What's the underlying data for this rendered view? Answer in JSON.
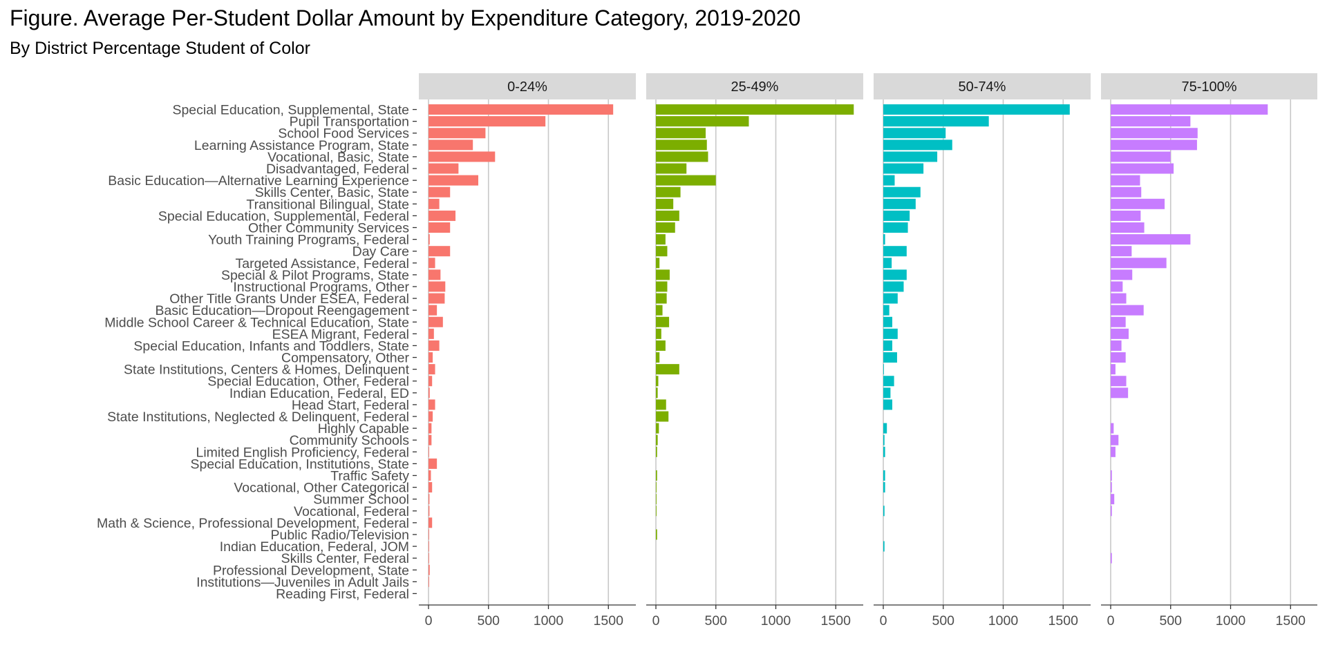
{
  "title": "Figure. Average Per-Student Dollar Amount by Expenditure Category, 2019-2020",
  "subtitle": "By District Percentage Student of Color",
  "chart_data": {
    "type": "bar",
    "orientation": "horizontal",
    "title": "Figure. Average Per-Student Dollar Amount by Expenditure Category, 2019-2020",
    "subtitle": "By District Percentage Student of Color",
    "xlim": [
      0,
      1750
    ],
    "x_ticks": [
      "0",
      "500",
      "1000",
      "1500"
    ],
    "x_tick_values": [
      0,
      500,
      1000,
      1500
    ],
    "grid": true,
    "legend": "none",
    "categories": [
      "Special Education, Supplemental, State",
      "Pupil Transportation",
      "School Food Services",
      "Learning Assistance Program, State",
      "Vocational, Basic, State",
      "Disadvantaged, Federal",
      "Basic Education—Alternative Learning Experience",
      "Skills Center, Basic, State",
      "Transitional Bilingual, State",
      "Special Education, Supplemental, Federal",
      "Other Community Services",
      "Youth Training Programs, Federal",
      "Day Care",
      "Targeted Assistance, Federal",
      "Special & Pilot Programs, State",
      "Instructional Programs, Other",
      "Other Title Grants Under ESEA, Federal",
      "Basic Education—Dropout Reengagement",
      "Middle School Career & Technical Education, State",
      "ESEA Migrant, Federal",
      "Special Education, Infants and Toddlers, State",
      "Compensatory, Other",
      "State Institutions, Centers & Homes, Delinquent",
      "Special Education, Other, Federal",
      "Indian Education, Federal, ED",
      "Head Start, Federal",
      "State Institutions, Neglected & Delinquent, Federal",
      "Highly Capable",
      "Community Schools",
      "Limited English Proficiency, Federal",
      "Special Education, Institutions, State",
      "Traffic Safety",
      "Vocational, Other Categorical",
      "Summer School",
      "Vocational, Federal",
      "Math & Science, Professional Development, Federal",
      "Public Radio/Television",
      "Indian Education, Federal, JOM",
      "Skills Center, Federal",
      "Professional Development, State",
      "Institutions—Juveniles in Adult Jails",
      "Reading First, Federal"
    ],
    "series": [
      {
        "name": "0-24%",
        "color": "#F8766D",
        "values": [
          1540,
          975,
          475,
          370,
          555,
          250,
          415,
          180,
          90,
          225,
          180,
          10,
          180,
          55,
          100,
          140,
          135,
          70,
          120,
          45,
          90,
          35,
          55,
          30,
          10,
          55,
          35,
          25,
          25,
          5,
          70,
          20,
          30,
          8,
          8,
          30,
          5,
          5,
          5,
          10,
          5,
          0
        ]
      },
      {
        "name": "25-49%",
        "color": "#7CAE00",
        "values": [
          1650,
          775,
          415,
          425,
          435,
          255,
          500,
          205,
          145,
          195,
          160,
          80,
          95,
          30,
          115,
          95,
          90,
          55,
          110,
          45,
          80,
          30,
          195,
          20,
          15,
          85,
          105,
          25,
          15,
          10,
          0,
          10,
          5,
          5,
          5,
          0,
          10,
          0,
          0,
          0,
          0,
          0
        ]
      },
      {
        "name": "50-74%",
        "color": "#00BFC4",
        "values": [
          1555,
          880,
          520,
          575,
          450,
          335,
          95,
          310,
          270,
          220,
          205,
          15,
          195,
          70,
          195,
          170,
          120,
          50,
          75,
          120,
          75,
          115,
          5,
          90,
          60,
          75,
          0,
          30,
          10,
          15,
          0,
          15,
          15,
          0,
          10,
          0,
          0,
          10,
          0,
          0,
          0,
          0
        ]
      },
      {
        "name": "75-100%",
        "color": "#C77CFF",
        "values": [
          1310,
          665,
          725,
          720,
          500,
          525,
          245,
          255,
          450,
          250,
          280,
          665,
          175,
          465,
          180,
          100,
          130,
          275,
          125,
          150,
          90,
          125,
          40,
          130,
          145,
          0,
          0,
          25,
          65,
          40,
          0,
          10,
          10,
          30,
          10,
          0,
          0,
          0,
          10,
          0,
          0,
          0
        ]
      }
    ]
  }
}
